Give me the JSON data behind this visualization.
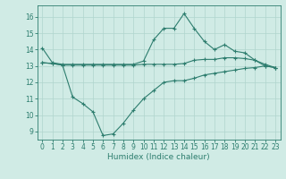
{
  "x": [
    0,
    1,
    2,
    3,
    4,
    5,
    6,
    7,
    8,
    9,
    10,
    11,
    12,
    13,
    14,
    15,
    16,
    17,
    18,
    19,
    20,
    21,
    22,
    23
  ],
  "line_max": [
    14.1,
    13.2,
    13.1,
    13.1,
    13.1,
    13.1,
    13.1,
    13.1,
    13.1,
    13.1,
    13.3,
    14.6,
    15.3,
    15.3,
    16.2,
    15.3,
    14.5,
    14.0,
    14.3,
    13.9,
    13.8,
    13.35,
    13.0,
    12.9
  ],
  "line_avg": [
    13.2,
    13.15,
    13.05,
    13.05,
    13.05,
    13.05,
    13.05,
    13.05,
    13.05,
    13.05,
    13.1,
    13.1,
    13.1,
    13.1,
    13.15,
    13.35,
    13.4,
    13.4,
    13.5,
    13.5,
    13.45,
    13.35,
    13.1,
    12.9
  ],
  "line_min": [
    13.2,
    13.15,
    13.05,
    11.1,
    10.7,
    10.2,
    8.75,
    8.85,
    9.5,
    10.3,
    11.0,
    11.5,
    12.0,
    12.1,
    12.1,
    12.25,
    12.45,
    12.55,
    12.65,
    12.75,
    12.85,
    12.9,
    13.0,
    12.9
  ],
  "line_color": "#2d7d6e",
  "bg_color": "#d0ebe5",
  "grid_color": "#b0d5ce",
  "xlabel": "Humidex (Indice chaleur)",
  "xlim": [
    -0.5,
    23.5
  ],
  "ylim": [
    8.5,
    16.7
  ],
  "yticks": [
    9,
    10,
    11,
    12,
    13,
    14,
    15,
    16
  ],
  "xticks": [
    0,
    1,
    2,
    3,
    4,
    5,
    6,
    7,
    8,
    9,
    10,
    11,
    12,
    13,
    14,
    15,
    16,
    17,
    18,
    19,
    20,
    21,
    22,
    23
  ],
  "label_fontsize": 6.5,
  "tick_fontsize": 5.5
}
